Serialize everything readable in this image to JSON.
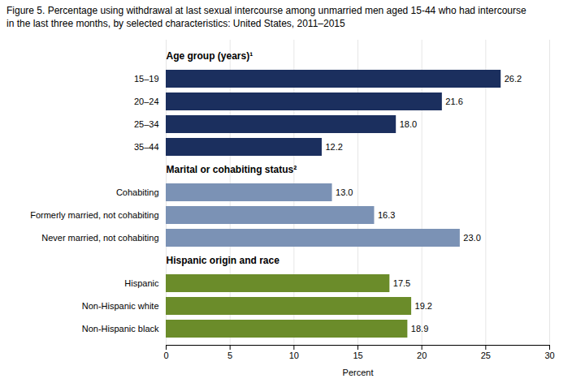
{
  "chart_data": {
    "type": "bar",
    "orientation": "horizontal",
    "title": "Figure 5. Percentage using withdrawal at last sexual intercourse among unmarried men aged 15-44 who had intercourse",
    "subtitle": "in the last three months, by selected characteristics: United States, 2011–2015",
    "x_label": "Percent",
    "xlim": [
      0,
      30
    ],
    "xticks": [
      0,
      5,
      10,
      15,
      20,
      25,
      30
    ],
    "grid": true,
    "data_labels": true,
    "groups": [
      {
        "name": "Age group (years)¹",
        "color": "#1b2f5e",
        "categories": [
          "15–19",
          "20–24",
          "25–34",
          "35–44"
        ],
        "values": [
          26.2,
          21.6,
          18.0,
          12.2
        ],
        "value_labels": [
          "26.2",
          "21.6",
          "18.0",
          "12.2"
        ]
      },
      {
        "name": "Marital or cohabiting status²",
        "color": "#7b92b5",
        "categories": [
          "Cohabiting",
          "Formerly married, not cohabiting",
          "Never married, not cohabiting"
        ],
        "values": [
          13.0,
          16.3,
          23.0
        ],
        "value_labels": [
          "13.0",
          "16.3",
          "23.0"
        ]
      },
      {
        "name": "Hispanic origin and race",
        "color": "#6b8c2a",
        "categories": [
          "Hispanic",
          "Non-Hispanic white",
          "Non-Hispanic black"
        ],
        "values": [
          17.5,
          19.2,
          18.9
        ],
        "value_labels": [
          "17.5",
          "19.2",
          "18.9"
        ]
      }
    ]
  }
}
